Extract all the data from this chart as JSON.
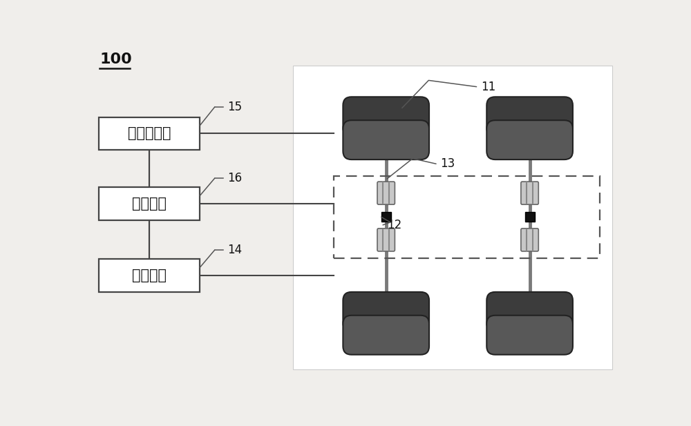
{
  "bg_color": "#f0eeeb",
  "title_label": "100",
  "box_sensor_label": "传感器模块",
  "box_control_label": "控制模块",
  "box_energy_label": "储能模块",
  "label_15": "15",
  "label_16": "16",
  "label_14": "14",
  "label_11": "11",
  "label_12": "12",
  "label_13": "13",
  "wheel_top_color": "#3a3a3a",
  "wheel_bot_color": "#606060",
  "wheel_edge": "#1a1a1a",
  "axle_color": "#888888",
  "cylinder_face": "#c8c8c8",
  "cylinder_edge": "#666666",
  "brake_color": "#101010",
  "box_face": "#ffffff",
  "box_edge": "#444444",
  "line_color": "#444444",
  "font_size_label": 12,
  "font_size_box": 15,
  "font_size_title": 16
}
